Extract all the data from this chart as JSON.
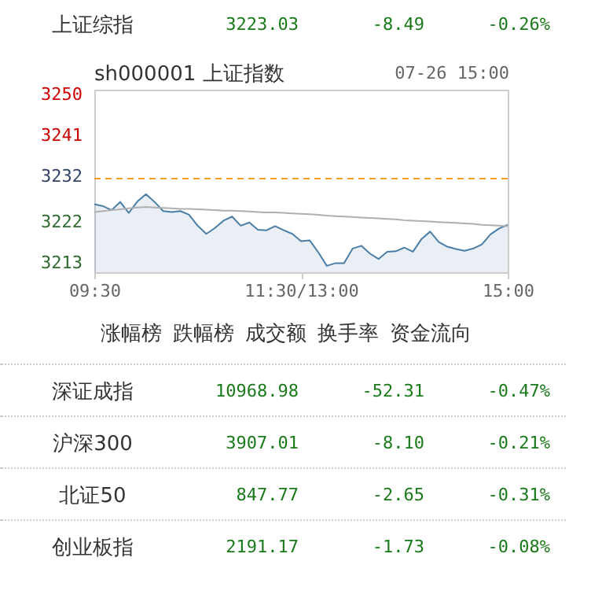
{
  "chart_data": {
    "type": "line",
    "title": "sh000001 上证指数",
    "subtitle": "07-26 15:00",
    "annotations": [
      "上证综指",
      "3223.03",
      "-8.49",
      "-0.26%",
      "涨幅榜",
      "跌幅榜",
      "成交额",
      "换手率",
      "资金流向",
      "深证成指",
      "10968.98",
      "-52.31",
      "-0.47%",
      "沪深300",
      "3907.01",
      "-8.10",
      "-0.21%",
      "北证50",
      "847.77",
      "-2.65",
      "-0.31%",
      "创业板指",
      "2191.17",
      "-1.73",
      "-0.08%"
    ],
    "categories": [
      "09:30",
      null,
      null,
      null,
      null,
      null,
      null,
      null,
      null,
      null,
      null,
      null,
      null,
      null,
      null,
      null,
      null,
      null,
      null,
      null,
      null,
      null,
      null,
      null,
      "11:30/13:00",
      null,
      null,
      null,
      null,
      null,
      null,
      null,
      null,
      null,
      null,
      null,
      null,
      null,
      null,
      null,
      null,
      null,
      null,
      null,
      null,
      null,
      null,
      null,
      "15:00"
    ],
    "ylim": [
      3211,
      3251
    ],
    "yticks": [
      3213,
      3222,
      3232,
      3241,
      3250
    ],
    "ref_lines": [
      {
        "axis": "y",
        "value": 3231.52,
        "color": "#f0a020",
        "line_style": "dashed"
      }
    ],
    "series": [
      {
        "type": "area",
        "color": "#4a7ea6",
        "values": [
          3225.9,
          3225.5,
          3224.6,
          3226.4,
          3224.0,
          3226.5,
          3228.1,
          3226.4,
          3224.4,
          3224.2,
          3224.4,
          3223.6,
          3221.2,
          3219.4,
          3220.7,
          3222.3,
          3223.2,
          3221.2,
          3221.9,
          3220.3,
          3220.2,
          3221.1,
          3220.2,
          3219.4,
          3217.8,
          3218.0,
          3215.4,
          3212.4,
          3213.0,
          3213.0,
          3216.2,
          3216.8,
          3215.1,
          3213.9,
          3215.5,
          3215.6,
          3216.4,
          3215.5,
          3218.3,
          3219.9,
          3217.6,
          3216.6,
          3216.1,
          3215.7,
          3216.2,
          3217.1,
          3219.3,
          3220.6,
          3221.4
        ]
      },
      {
        "color": "#b0b0b0",
        "values": [
          3224.2,
          3224.4,
          3224.6,
          3224.8,
          3225.0,
          3225.2,
          3225.3,
          3225.2,
          3225.1,
          3225.0,
          3224.9,
          3224.9,
          3224.8,
          3224.7,
          3224.6,
          3224.5,
          3224.5,
          3224.4,
          3224.3,
          3224.2,
          3224.1,
          3224.1,
          3224.0,
          3223.9,
          3223.8,
          3223.7,
          3223.6,
          3223.4,
          3223.3,
          3223.2,
          3223.1,
          3223.0,
          3222.9,
          3222.8,
          3222.7,
          3222.6,
          3222.4,
          3222.3,
          3222.2,
          3222.1,
          3222.0,
          3221.9,
          3221.8,
          3221.7,
          3221.6,
          3221.4,
          3221.3,
          3221.2,
          3221.1
        ]
      }
    ]
  }
}
